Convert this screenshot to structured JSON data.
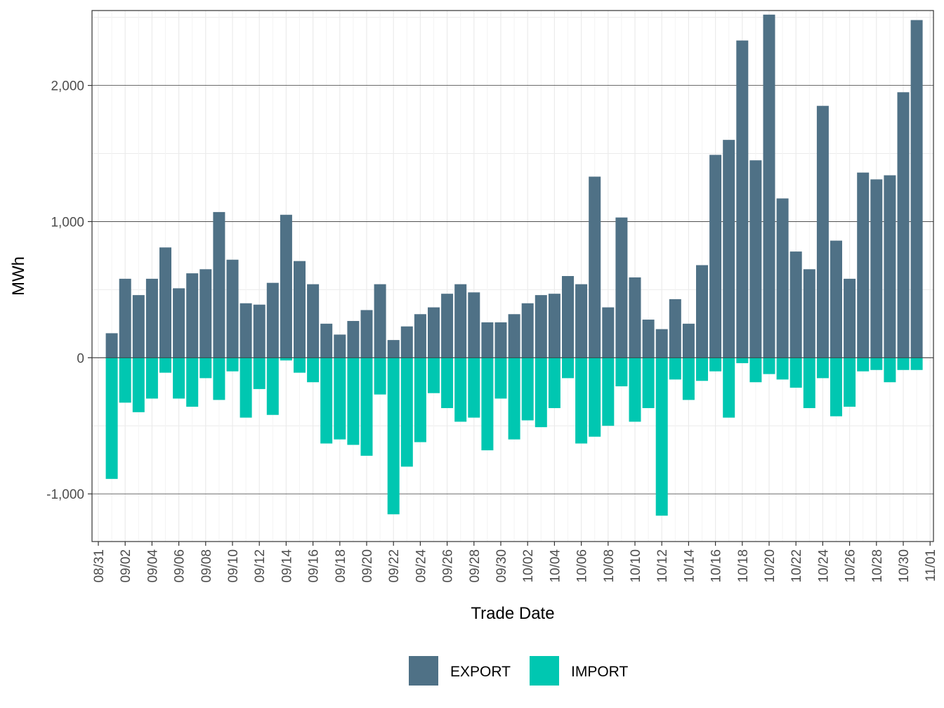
{
  "chart_data": {
    "type": "bar",
    "stacked": "diverging",
    "title": "",
    "xlabel": "Trade Date",
    "ylabel": "MWh",
    "ylim": [
      -1350,
      2550
    ],
    "y_ticks": [
      -1000,
      0,
      1000,
      2000
    ],
    "y_tick_labels": [
      "-1,000",
      "0",
      "1,000",
      "2,000"
    ],
    "x_tick_labels": [
      "08/31",
      "09/02",
      "09/04",
      "09/06",
      "09/08",
      "09/10",
      "09/12",
      "09/14",
      "09/16",
      "09/18",
      "09/20",
      "09/22",
      "09/24",
      "09/26",
      "09/28",
      "09/30",
      "10/02",
      "10/04",
      "10/06",
      "10/08",
      "10/10",
      "10/12",
      "10/14",
      "10/16",
      "10/18",
      "10/20",
      "10/22",
      "10/24",
      "10/26",
      "10/28",
      "10/30",
      "11/01"
    ],
    "categories": [
      "09/01",
      "09/02",
      "09/03",
      "09/04",
      "09/05",
      "09/06",
      "09/07",
      "09/08",
      "09/09",
      "09/10",
      "09/11",
      "09/12",
      "09/13",
      "09/14",
      "09/15",
      "09/16",
      "09/17",
      "09/18",
      "09/19",
      "09/20",
      "09/21",
      "09/22",
      "09/23",
      "09/24",
      "09/25",
      "09/26",
      "09/27",
      "09/28",
      "09/29",
      "09/30",
      "10/01",
      "10/02",
      "10/03",
      "10/04",
      "10/05",
      "10/06",
      "10/07",
      "10/08",
      "10/09",
      "10/10",
      "10/11",
      "10/12",
      "10/13",
      "10/14",
      "10/15",
      "10/16",
      "10/17",
      "10/18",
      "10/19",
      "10/20",
      "10/21",
      "10/22",
      "10/23",
      "10/24",
      "10/25",
      "10/26",
      "10/27",
      "10/28",
      "10/29",
      "10/30",
      "10/31"
    ],
    "series": [
      {
        "name": "EXPORT",
        "color": "#4f7186",
        "values": [
          180,
          580,
          460,
          580,
          810,
          510,
          620,
          650,
          1070,
          720,
          400,
          390,
          550,
          1050,
          710,
          540,
          250,
          170,
          270,
          350,
          540,
          130,
          230,
          320,
          370,
          470,
          540,
          480,
          260,
          260,
          320,
          400,
          460,
          470,
          600,
          540,
          1330,
          370,
          1030,
          590,
          280,
          210,
          430,
          250,
          680,
          1490,
          1600,
          2330,
          1450,
          2520,
          1170,
          780,
          650,
          1850,
          860,
          580,
          1360,
          1310,
          1340,
          1950,
          2480
        ]
      },
      {
        "name": "IMPORT",
        "color": "#00c7b1",
        "values": [
          -890,
          -330,
          -400,
          -300,
          -110,
          -300,
          -360,
          -150,
          -310,
          -100,
          -440,
          -230,
          -420,
          -20,
          -110,
          -180,
          -630,
          -600,
          -640,
          -720,
          -270,
          -1150,
          -800,
          -620,
          -260,
          -370,
          -470,
          -440,
          -680,
          -300,
          -600,
          -460,
          -510,
          -370,
          -150,
          -630,
          -580,
          -500,
          -210,
          -470,
          -370,
          -1160,
          -160,
          -310,
          -170,
          -100,
          -440,
          -40,
          -180,
          -120,
          -160,
          -220,
          -370,
          -150,
          -430,
          -360,
          -100,
          -90,
          -180,
          -90,
          -90
        ]
      }
    ],
    "legend_position": "bottom"
  }
}
